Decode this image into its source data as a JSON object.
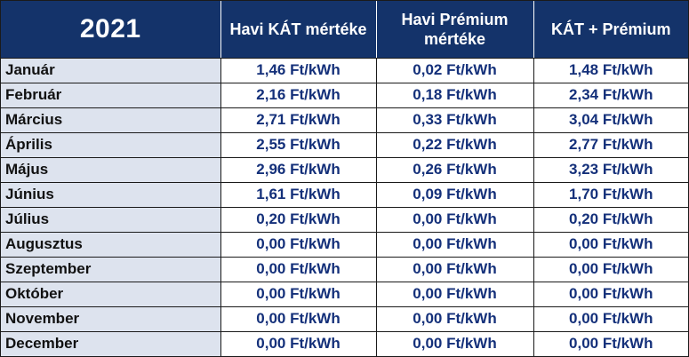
{
  "table": {
    "headers": {
      "year": "2021",
      "kat": "Havi KÁT mértéke",
      "premium": "Havi Prémium mértéke",
      "total": "KÁT + Prémium"
    },
    "rows": [
      {
        "month": "Január",
        "kat": "1,46 Ft/kWh",
        "premium": "0,02 Ft/kWh",
        "total": "1,48 Ft/kWh"
      },
      {
        "month": "Február",
        "kat": "2,16 Ft/kWh",
        "premium": "0,18 Ft/kWh",
        "total": "2,34 Ft/kWh"
      },
      {
        "month": "Március",
        "kat": "2,71 Ft/kWh",
        "premium": "0,33 Ft/kWh",
        "total": "3,04 Ft/kWh"
      },
      {
        "month": "Április",
        "kat": "2,55 Ft/kWh",
        "premium": "0,22 Ft/kWh",
        "total": "2,77 Ft/kWh"
      },
      {
        "month": "Május",
        "kat": "2,96 Ft/kWh",
        "premium": "0,26 Ft/kWh",
        "total": "3,23 Ft/kWh"
      },
      {
        "month": "Június",
        "kat": "1,61 Ft/kWh",
        "premium": "0,09 Ft/kWh",
        "total": "1,70 Ft/kWh"
      },
      {
        "month": "Július",
        "kat": "0,20 Ft/kWh",
        "premium": "0,00 Ft/kWh",
        "total": "0,20 Ft/kWh"
      },
      {
        "month": "Augusztus",
        "kat": "0,00 Ft/kWh",
        "premium": "0,00 Ft/kWh",
        "total": "0,00 Ft/kWh"
      },
      {
        "month": "Szeptember",
        "kat": "0,00 Ft/kWh",
        "premium": "0,00 Ft/kWh",
        "total": "0,00 Ft/kWh"
      },
      {
        "month": "Október",
        "kat": "0,00 Ft/kWh",
        "premium": "0,00 Ft/kWh",
        "total": "0,00 Ft/kWh"
      },
      {
        "month": "November",
        "kat": "0,00 Ft/kWh",
        "premium": "0,00 Ft/kWh",
        "total": "0,00 Ft/kWh"
      },
      {
        "month": "December",
        "kat": "0,00 Ft/kWh",
        "premium": "0,00 Ft/kWh",
        "total": "0,00 Ft/kWh"
      }
    ]
  },
  "colors": {
    "header_bg": "#14336a",
    "header_text": "#ffffff",
    "month_bg": "#dde3ee",
    "value_text": "#14307a"
  }
}
